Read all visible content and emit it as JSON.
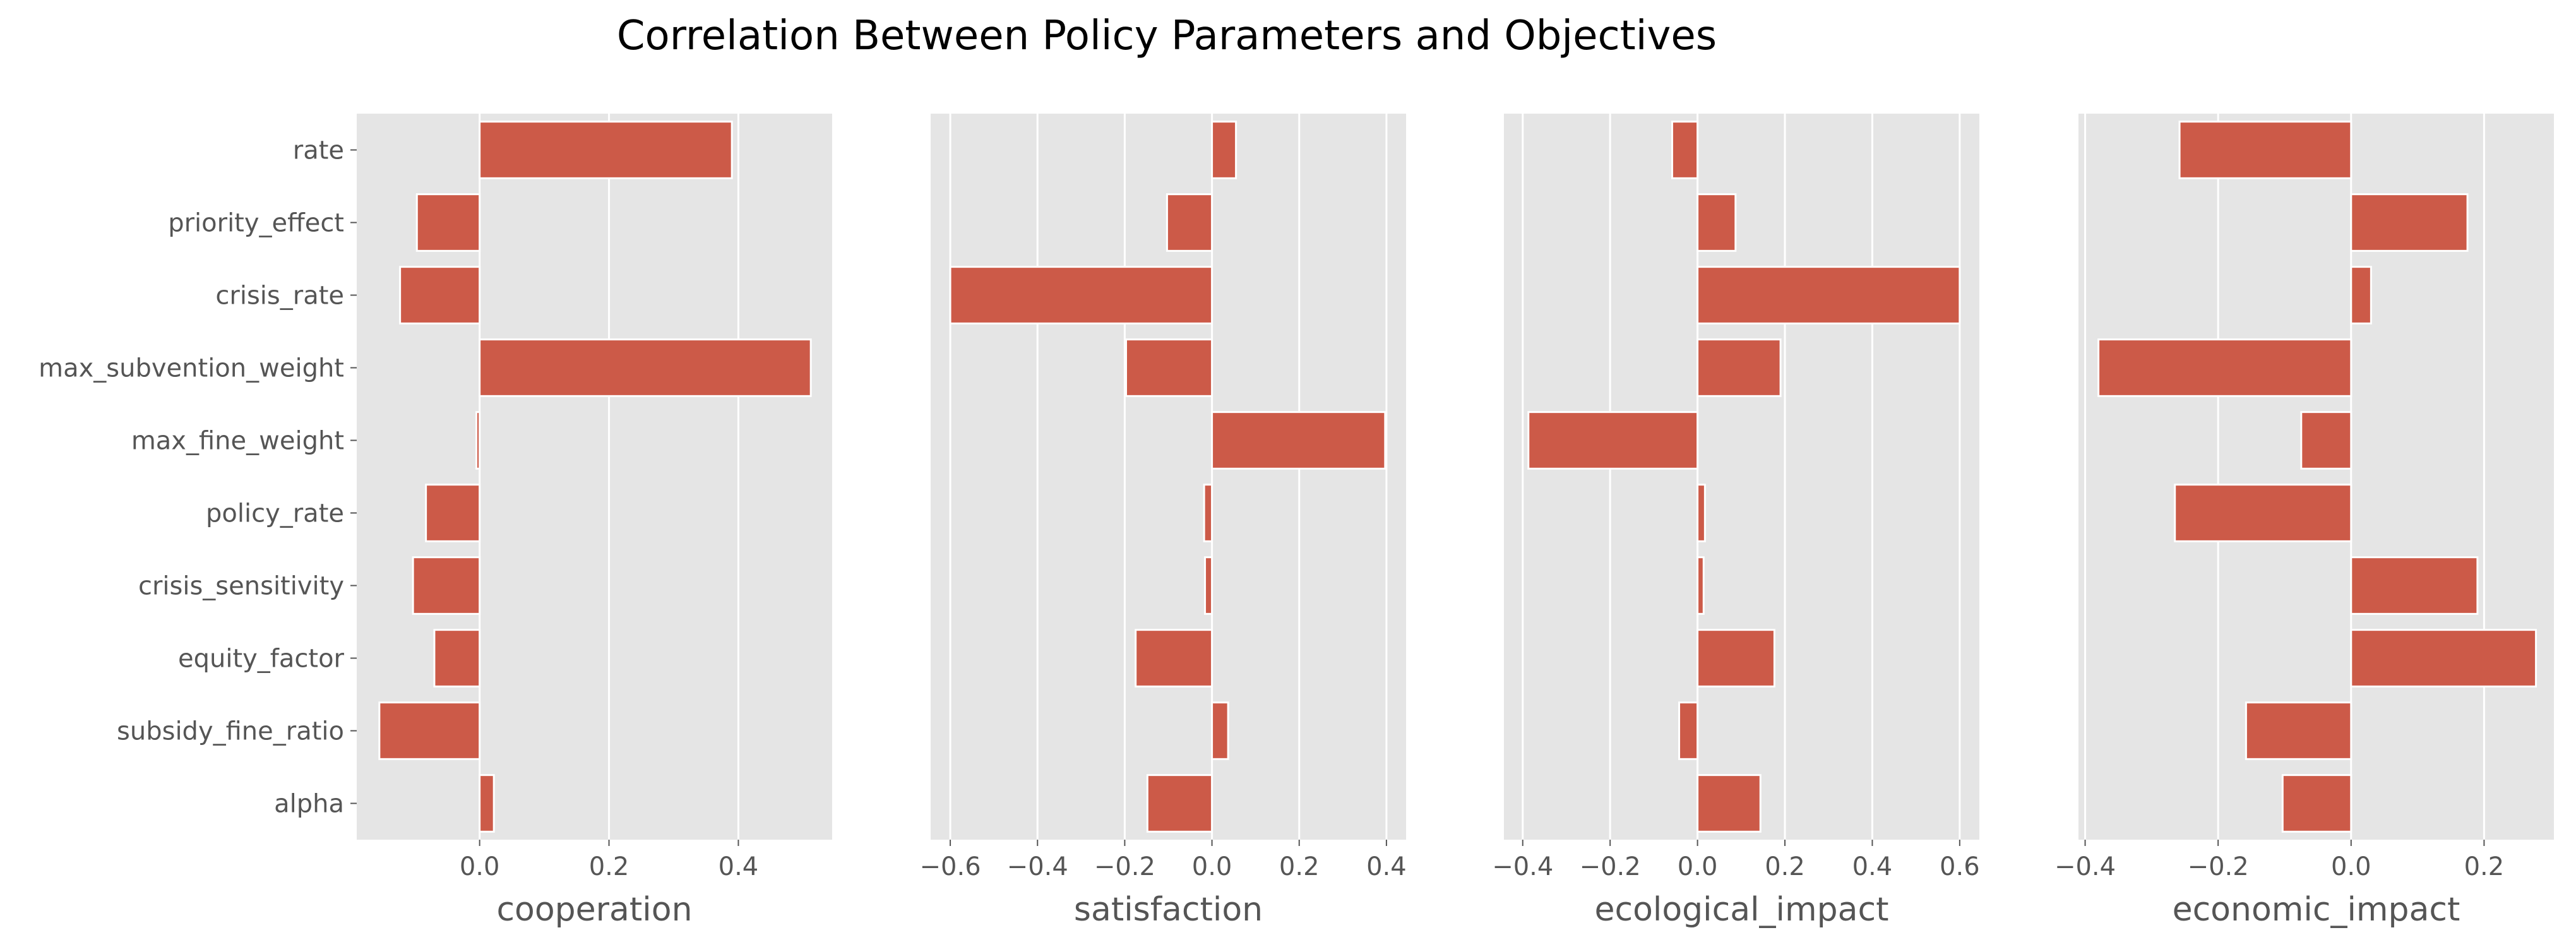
{
  "chart_data": {
    "type": "bar",
    "orientation": "horizontal",
    "title": "Correlation Between Policy Parameters and Objectives",
    "categories": [
      "rate",
      "priority_effect",
      "crisis_rate",
      "max_subvention_weight",
      "max_fine_weight",
      "policy_rate",
      "crisis_sensitivity",
      "equity_factor",
      "subsidy_fine_ratio",
      "alpha"
    ],
    "bar_color": "#cc5a48",
    "background_color": "#e5e5e5",
    "grid": true,
    "panels": [
      {
        "xlabel": "cooperation",
        "xlim": [
          -0.19,
          0.545
        ],
        "xticks": [
          0.0,
          0.2,
          0.4
        ],
        "xtick_labels": [
          "0.0",
          "0.2",
          "0.4"
        ],
        "values": [
          0.39,
          -0.097,
          -0.123,
          0.512,
          -0.005,
          -0.083,
          -0.103,
          -0.07,
          -0.155,
          0.022
        ]
      },
      {
        "xlabel": "satisfaction",
        "xlim": [
          -0.645,
          0.445
        ],
        "xticks": [
          -0.6,
          -0.4,
          -0.2,
          0.0,
          0.2,
          0.4
        ],
        "xtick_labels": [
          "−0.6",
          "−0.4",
          "−0.2",
          "0.0",
          "0.2",
          "0.4"
        ],
        "values": [
          0.055,
          -0.103,
          -0.6,
          -0.197,
          0.397,
          -0.018,
          -0.016,
          -0.175,
          0.037,
          -0.148
        ]
      },
      {
        "xlabel": "ecological_impact",
        "xlim": [
          -0.443,
          0.645
        ],
        "xticks": [
          -0.4,
          -0.2,
          0.0,
          0.2,
          0.4,
          0.6
        ],
        "xtick_labels": [
          "−0.4",
          "−0.2",
          "0.0",
          "0.2",
          "0.4",
          "0.6"
        ],
        "values": [
          -0.058,
          0.087,
          0.6,
          0.19,
          -0.387,
          0.017,
          0.014,
          0.176,
          -0.042,
          0.144
        ]
      },
      {
        "xlabel": "economic_impact",
        "xlim": [
          -0.41,
          0.305
        ],
        "xticks": [
          -0.4,
          -0.2,
          0.0,
          0.2
        ],
        "xtick_labels": [
          "−0.4",
          "−0.2",
          "0.0",
          "0.2"
        ],
        "values": [
          -0.258,
          0.175,
          0.03,
          -0.38,
          -0.075,
          -0.265,
          0.19,
          0.278,
          -0.158,
          -0.103
        ]
      }
    ]
  }
}
